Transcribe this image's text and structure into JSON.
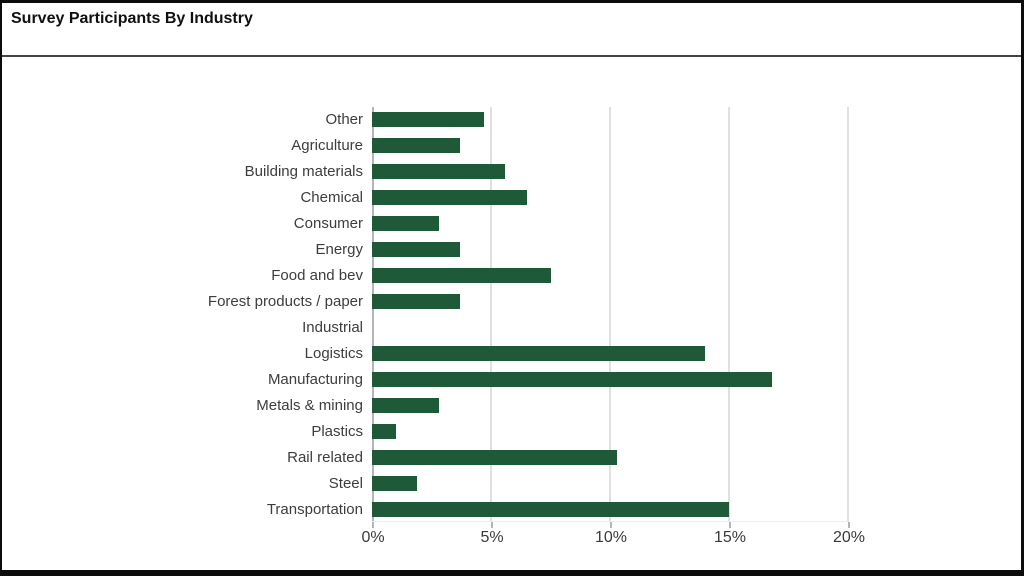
{
  "window": {
    "title": "Survey Participants By Industry"
  },
  "chart_data": {
    "type": "bar",
    "orientation": "horizontal",
    "title": "Survey Participants By Industry",
    "categories": [
      "Other",
      "Agriculture",
      "Building materials",
      "Chemical",
      "Consumer",
      "Energy",
      "Food and bev",
      "Forest products / paper",
      "Industrial",
      "Logistics",
      "Manufacturing",
      "Metals & mining",
      "Plastics",
      "Rail related",
      "Steel",
      "Transportation"
    ],
    "values": [
      4.7,
      3.7,
      5.6,
      6.5,
      2.8,
      3.7,
      7.5,
      3.7,
      0,
      14.0,
      16.8,
      2.8,
      1.0,
      10.3,
      1.9,
      15.0
    ],
    "unit": "%",
    "x_ticks": [
      "0%",
      "5%",
      "10%",
      "15%",
      "20%"
    ],
    "x_tick_values": [
      0,
      5,
      10,
      15,
      20
    ],
    "xlim": [
      0,
      20
    ],
    "xlabel": "",
    "ylabel": "",
    "grid": true,
    "legend": "none",
    "bar_color": "#1e5a38",
    "gridline_color": "#e0e0e0",
    "axis_color": "#b5b5b5",
    "label_color": "#3d3d3d"
  }
}
